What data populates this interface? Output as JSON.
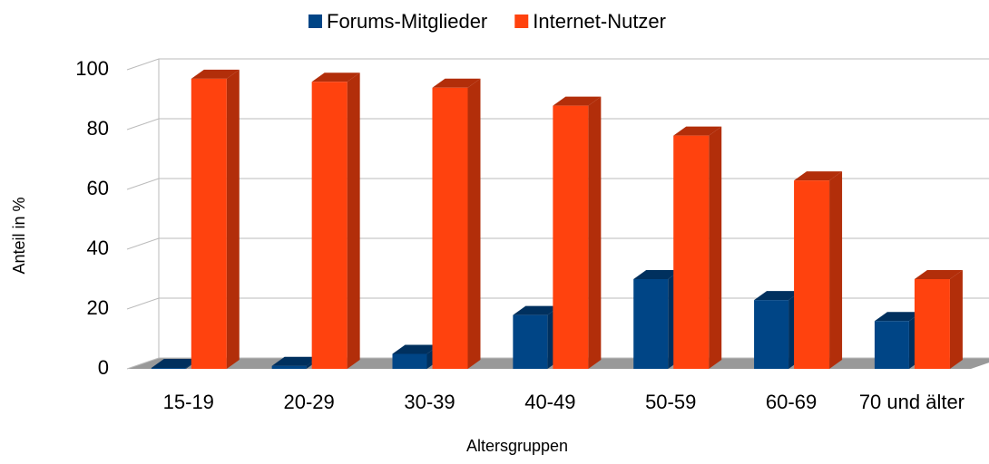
{
  "chart_data": {
    "type": "bar3d",
    "categories": [
      "15-19",
      "20-29",
      "30-39",
      "40-49",
      "50-59",
      "60-69",
      "70 und älter"
    ],
    "series": [
      {
        "name": "Forums-Mitglieder",
        "color": "#004586",
        "side": "#00305e",
        "values": [
          0.3,
          1,
          5,
          18,
          30,
          23,
          16
        ]
      },
      {
        "name": "Internet-Nutzer",
        "color": "#ff420e",
        "side": "#b22e0a",
        "values": [
          97,
          96,
          94,
          88,
          78,
          63,
          30
        ]
      }
    ],
    "ylim": [
      0,
      100
    ],
    "yticks": [
      0,
      20,
      40,
      60,
      80,
      100
    ],
    "grid": true,
    "y_label": "Anteil in %",
    "x_label": "Altersgruppen",
    "legend": "top"
  }
}
